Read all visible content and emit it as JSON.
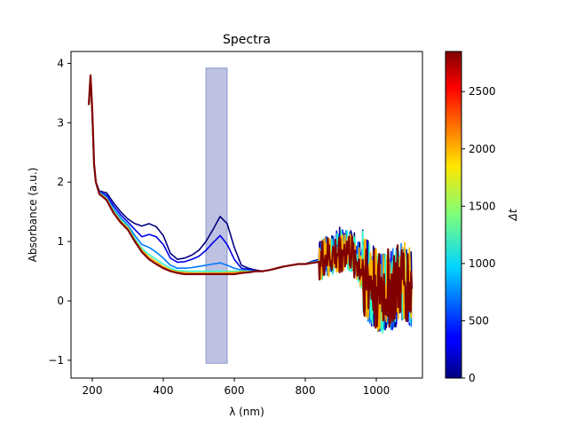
{
  "chart_data": {
    "type": "line",
    "title": "Spectra",
    "xlabel": "λ (nm)",
    "ylabel": "Absorbance (a.u.)",
    "xlim": [
      140,
      1130
    ],
    "ylim": [
      -1.3,
      4.2
    ],
    "x_ticks": [
      200,
      400,
      600,
      800,
      1000
    ],
    "y_ticks": [
      -1,
      0,
      1,
      2,
      3,
      4
    ],
    "grid": false,
    "shaded_region": {
      "x": [
        520,
        580
      ],
      "y": [
        -1.05,
        3.92
      ],
      "color": "#7b86c6"
    },
    "colorbar": {
      "label": "Δt",
      "range": [
        0,
        2850
      ],
      "ticks": [
        0,
        500,
        1000,
        1500,
        2000,
        2500
      ],
      "colormap": "jet"
    },
    "series": [
      {
        "delta_t": 0,
        "x": [
          190,
          195,
          200,
          205,
          210,
          220,
          240,
          260,
          280,
          300,
          320,
          340,
          360,
          380,
          400,
          420,
          440,
          460,
          480,
          500,
          520,
          540,
          560,
          580,
          600,
          620,
          640,
          660,
          680,
          700,
          720,
          740,
          760,
          780,
          800,
          820,
          840,
          860,
          880,
          900,
          920,
          940,
          960,
          980,
          1000,
          1020,
          1040,
          1060,
          1080,
          1100
        ],
        "y": [
          3.3,
          3.7,
          3.1,
          2.3,
          2.0,
          1.85,
          1.82,
          1.65,
          1.5,
          1.38,
          1.3,
          1.26,
          1.3,
          1.25,
          1.1,
          0.8,
          0.7,
          0.72,
          0.77,
          0.85,
          1.0,
          1.2,
          1.42,
          1.3,
          0.9,
          0.6,
          0.55,
          0.52,
          0.5,
          0.52,
          0.55,
          0.58,
          0.6,
          0.62,
          0.62,
          0.67,
          0.7,
          0.78,
          0.85,
          0.9,
          0.95,
          0.8,
          0.6,
          0.3,
          0.2,
          0.15,
          0.2,
          0.25,
          0.3,
          0.2
        ]
      },
      {
        "delta_t": 300,
        "x": [
          190,
          195,
          200,
          205,
          210,
          220,
          240,
          260,
          280,
          300,
          320,
          340,
          360,
          380,
          400,
          420,
          440,
          460,
          480,
          500,
          520,
          540,
          560,
          580,
          600,
          620,
          640,
          660,
          680,
          700,
          720,
          740,
          760,
          780,
          800,
          820,
          840,
          860,
          880,
          900,
          920,
          940,
          960,
          980,
          1000,
          1020,
          1040,
          1060,
          1080,
          1100
        ],
        "y": [
          3.3,
          3.7,
          3.1,
          2.3,
          2.0,
          1.84,
          1.78,
          1.6,
          1.45,
          1.33,
          1.2,
          1.08,
          1.12,
          1.08,
          0.95,
          0.72,
          0.65,
          0.66,
          0.7,
          0.75,
          0.85,
          0.98,
          1.1,
          0.95,
          0.7,
          0.55,
          0.53,
          0.51,
          0.5,
          0.52,
          0.55,
          0.58,
          0.6,
          0.62,
          0.62,
          0.66,
          0.69,
          0.76,
          0.83,
          0.88,
          0.92,
          0.78,
          0.58,
          0.3,
          0.2,
          0.15,
          0.2,
          0.25,
          0.3,
          0.2
        ]
      },
      {
        "delta_t": 700,
        "x": [
          190,
          195,
          200,
          205,
          210,
          220,
          240,
          260,
          280,
          300,
          320,
          340,
          360,
          380,
          400,
          420,
          440,
          460,
          480,
          500,
          520,
          540,
          560,
          580,
          600,
          620,
          640,
          660,
          680,
          700,
          720,
          740,
          760,
          780,
          800,
          820,
          840,
          860,
          880,
          900,
          920,
          940,
          960,
          980,
          1000,
          1020,
          1040,
          1060,
          1080,
          1100
        ],
        "y": [
          3.3,
          3.7,
          3.1,
          2.3,
          2.0,
          1.83,
          1.75,
          1.55,
          1.4,
          1.28,
          1.1,
          0.95,
          0.9,
          0.82,
          0.72,
          0.6,
          0.55,
          0.55,
          0.56,
          0.58,
          0.6,
          0.62,
          0.64,
          0.6,
          0.55,
          0.52,
          0.51,
          0.5,
          0.5,
          0.52,
          0.55,
          0.58,
          0.6,
          0.62,
          0.62,
          0.66,
          0.68,
          0.75,
          0.82,
          0.86,
          0.9,
          0.76,
          0.56,
          0.3,
          0.2,
          0.15,
          0.2,
          0.25,
          0.3,
          0.2
        ]
      },
      {
        "delta_t": 1200,
        "x": [
          190,
          195,
          200,
          205,
          210,
          220,
          240,
          260,
          280,
          300,
          320,
          340,
          360,
          380,
          400,
          420,
          440,
          460,
          480,
          500,
          520,
          540,
          560,
          580,
          600,
          620,
          640,
          660,
          680,
          700,
          720,
          740,
          760,
          780,
          800,
          820,
          840,
          860,
          880,
          900,
          920,
          940,
          960,
          980,
          1000,
          1020,
          1040,
          1060,
          1080,
          1100
        ],
        "y": [
          3.3,
          3.7,
          3.1,
          2.3,
          2.0,
          1.82,
          1.73,
          1.52,
          1.36,
          1.25,
          1.05,
          0.88,
          0.78,
          0.7,
          0.62,
          0.55,
          0.51,
          0.5,
          0.5,
          0.5,
          0.5,
          0.5,
          0.5,
          0.5,
          0.5,
          0.5,
          0.5,
          0.5,
          0.5,
          0.52,
          0.55,
          0.58,
          0.6,
          0.62,
          0.62,
          0.65,
          0.67,
          0.74,
          0.8,
          0.85,
          0.88,
          0.74,
          0.55,
          0.3,
          0.2,
          0.15,
          0.2,
          0.25,
          0.3,
          0.2
        ]
      },
      {
        "delta_t": 2000,
        "x": [
          190,
          195,
          200,
          205,
          210,
          220,
          240,
          260,
          280,
          300,
          320,
          340,
          360,
          380,
          400,
          420,
          440,
          460,
          480,
          500,
          520,
          540,
          560,
          580,
          600,
          620,
          640,
          660,
          680,
          700,
          720,
          740,
          760,
          780,
          800,
          820,
          840,
          860,
          880,
          900,
          920,
          940,
          960,
          980,
          1000,
          1020,
          1040,
          1060,
          1080,
          1100
        ],
        "y": [
          3.3,
          3.7,
          3.1,
          2.3,
          2.0,
          1.81,
          1.72,
          1.5,
          1.34,
          1.23,
          1.02,
          0.85,
          0.74,
          0.66,
          0.58,
          0.52,
          0.49,
          0.48,
          0.47,
          0.47,
          0.47,
          0.47,
          0.47,
          0.48,
          0.48,
          0.49,
          0.49,
          0.5,
          0.5,
          0.52,
          0.55,
          0.58,
          0.6,
          0.62,
          0.62,
          0.64,
          0.66,
          0.72,
          0.78,
          0.83,
          0.86,
          0.72,
          0.54,
          0.3,
          0.2,
          0.15,
          0.2,
          0.25,
          0.3,
          0.2
        ]
      },
      {
        "delta_t": 2850,
        "x": [
          190,
          195,
          200,
          205,
          210,
          220,
          240,
          260,
          280,
          300,
          320,
          340,
          360,
          380,
          400,
          420,
          440,
          460,
          480,
          500,
          520,
          540,
          560,
          580,
          600,
          620,
          640,
          660,
          680,
          700,
          720,
          740,
          760,
          780,
          800,
          820,
          840,
          860,
          880,
          900,
          920,
          940,
          960,
          980,
          1000,
          1020,
          1040,
          1060,
          1080,
          1100
        ],
        "y": [
          3.3,
          3.8,
          3.2,
          2.3,
          2.0,
          1.8,
          1.7,
          1.48,
          1.32,
          1.2,
          1.0,
          0.82,
          0.7,
          0.62,
          0.55,
          0.5,
          0.47,
          0.45,
          0.45,
          0.45,
          0.45,
          0.45,
          0.45,
          0.45,
          0.45,
          0.47,
          0.48,
          0.5,
          0.5,
          0.52,
          0.55,
          0.58,
          0.6,
          0.62,
          0.62,
          0.64,
          0.66,
          0.72,
          0.76,
          0.8,
          0.84,
          0.7,
          0.52,
          0.3,
          0.2,
          0.15,
          0.2,
          0.25,
          0.3,
          0.2
        ]
      }
    ]
  }
}
